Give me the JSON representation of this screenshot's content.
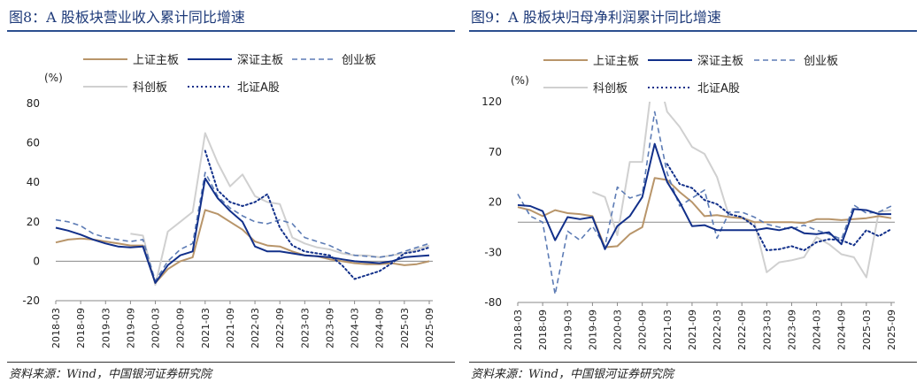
{
  "panels": [
    {
      "title": "图8：A 股板块营业收入累计同比增速",
      "source": "资料来源：Wind，中国银河证券研究院"
    },
    {
      "title": "图9：A 股板块归母净利润累计同比增速",
      "source": "资料来源：Wind，中国银河证券研究院"
    }
  ],
  "chart_data": [
    {
      "type": "line",
      "title": "图8：A 股板块营业收入累计同比增速",
      "ylabel": "(%)",
      "ylim": [
        -20,
        80
      ],
      "yticks": [
        -20,
        0,
        20,
        40,
        60,
        80
      ],
      "x_tick_labels": [
        "2018-03",
        "2018-09",
        "2019-03",
        "2019-09",
        "2020-03",
        "2020-09",
        "2021-03",
        "2021-09",
        "2022-03",
        "2022-09",
        "2023-03",
        "2023-09",
        "2024-03",
        "2024-09",
        "2025-03",
        "2025-09"
      ],
      "x": [
        "2018-03",
        "2018-06",
        "2018-09",
        "2018-12",
        "2019-03",
        "2019-06",
        "2019-09",
        "2019-12",
        "2020-03",
        "2020-06",
        "2020-09",
        "2020-12",
        "2021-03",
        "2021-06",
        "2021-09",
        "2021-12",
        "2022-03",
        "2022-06",
        "2022-09",
        "2022-12",
        "2023-03",
        "2023-06",
        "2023-09",
        "2023-12",
        "2024-03",
        "2024-06",
        "2024-09",
        "2024-12",
        "2025-03",
        "2025-06",
        "2025-09"
      ],
      "legend": "top",
      "grid": false,
      "series": [
        {
          "name": "上证主板",
          "color": "#b8956a",
          "style": "solid",
          "values": [
            9.5,
            11,
            11.5,
            11,
            10,
            9,
            8,
            8,
            -11,
            -4,
            0,
            2,
            26,
            24,
            20,
            16,
            10,
            8,
            7.5,
            5,
            3,
            2.5,
            1,
            0,
            -1,
            -1.5,
            -1.5,
            -1,
            -2,
            -1.5,
            0
          ]
        },
        {
          "name": "深证主板",
          "color": "#12308a",
          "style": "solid",
          "values": [
            17,
            15.5,
            13.5,
            11,
            9,
            7.5,
            7,
            7.5,
            -11,
            -2,
            3,
            5,
            42,
            32,
            25.5,
            20,
            7.5,
            5,
            5,
            4,
            3,
            2.5,
            2,
            1,
            0,
            -0.5,
            -1,
            0,
            2,
            2.5,
            3
          ]
        },
        {
          "name": "创业板",
          "color": "#5d7cb5",
          "style": "dashed",
          "values": [
            21,
            20,
            18,
            14,
            12,
            11,
            10,
            11,
            -10,
            0,
            6,
            9,
            45,
            33,
            27,
            23,
            20,
            19,
            21,
            19,
            12,
            10,
            8,
            5,
            3,
            2.5,
            2,
            3,
            5,
            7,
            9
          ]
        },
        {
          "name": "科创板",
          "color": "#d0d0d0",
          "style": "solid",
          "values": [
            null,
            null,
            null,
            null,
            null,
            null,
            14,
            13,
            -12,
            15,
            20,
            25,
            65,
            50,
            38,
            44,
            33,
            30,
            29,
            12,
            9,
            7,
            6,
            4,
            3,
            3,
            2,
            3,
            4,
            6,
            8
          ]
        },
        {
          "name": "北证A股",
          "color": "#12308a",
          "style": "dotted",
          "values": [
            null,
            null,
            null,
            null,
            null,
            null,
            null,
            null,
            null,
            null,
            null,
            null,
            56,
            36,
            30,
            28,
            30,
            34,
            17,
            8,
            5,
            4,
            3,
            -2,
            -9,
            -7,
            -5,
            -1,
            4,
            5,
            7
          ]
        }
      ]
    },
    {
      "type": "line",
      "title": "图9：A 股板块归母净利润累计同比增速",
      "ylabel": "(%)",
      "ylim": [
        -80,
        120
      ],
      "yticks": [
        -80,
        -30,
        20,
        70,
        120
      ],
      "x_tick_labels": [
        "2018-03",
        "2018-09",
        "2019-03",
        "2019-09",
        "2020-03",
        "2020-09",
        "2021-03",
        "2021-09",
        "2022-03",
        "2022-09",
        "2023-03",
        "2023-09",
        "2024-03",
        "2024-09",
        "2025-03",
        "2025-09"
      ],
      "x": [
        "2018-03",
        "2018-06",
        "2018-09",
        "2018-12",
        "2019-03",
        "2019-06",
        "2019-09",
        "2019-12",
        "2020-03",
        "2020-06",
        "2020-09",
        "2020-12",
        "2021-03",
        "2021-06",
        "2021-09",
        "2021-12",
        "2022-03",
        "2022-06",
        "2022-09",
        "2022-12",
        "2023-03",
        "2023-06",
        "2023-09",
        "2023-12",
        "2024-03",
        "2024-06",
        "2024-09",
        "2024-12",
        "2025-03",
        "2025-06",
        "2025-09"
      ],
      "legend": "top",
      "grid": false,
      "series": [
        {
          "name": "上证主板",
          "color": "#b8956a",
          "style": "solid",
          "values": [
            15,
            12,
            6,
            12,
            9,
            8,
            6,
            -25,
            -24,
            -12,
            -5,
            44,
            42,
            30,
            20,
            6,
            7,
            5,
            4,
            0,
            0,
            0,
            0,
            -1,
            3,
            3,
            2,
            3,
            4,
            6,
            4
          ]
        },
        {
          "name": "深证主板",
          "color": "#12308a",
          "style": "solid",
          "values": [
            17,
            16,
            11,
            -18,
            5,
            3,
            5,
            -27,
            -4,
            6,
            25,
            78,
            40,
            20,
            -4,
            -3,
            -8,
            -8,
            -8,
            -8,
            -6,
            -8,
            -5,
            -11,
            -12,
            -10,
            -22,
            13,
            12,
            8,
            8
          ]
        },
        {
          "name": "创业板",
          "color": "#5d7cb5",
          "style": "dashed",
          "values": [
            28,
            6,
            0,
            -72,
            -9,
            -18,
            -4,
            -24,
            35,
            24,
            28,
            110,
            49,
            16,
            24,
            32,
            -16,
            10,
            10,
            5,
            -2,
            -5,
            -7,
            -3,
            -8,
            -12,
            -17,
            17,
            9,
            10,
            16
          ]
        },
        {
          "name": "科创板",
          "color": "#d0d0d0",
          "style": "solid",
          "values": [
            null,
            null,
            null,
            null,
            null,
            null,
            30,
            25,
            -13,
            60,
            60,
            160,
            110,
            95,
            75,
            68,
            45,
            5,
            5,
            0,
            -50,
            -40,
            -38,
            -35,
            -15,
            -22,
            -32,
            -35,
            -55,
            10,
            12
          ]
        },
        {
          "name": "北证A股",
          "color": "#12308a",
          "style": "dotted",
          "values": [
            null,
            null,
            null,
            null,
            null,
            null,
            null,
            null,
            null,
            null,
            null,
            null,
            58,
            38,
            34,
            22,
            18,
            8,
            5,
            -4,
            -28,
            -27,
            -24,
            -28,
            -20,
            -17,
            -18,
            -23,
            -8,
            -14,
            -7
          ]
        }
      ]
    }
  ]
}
